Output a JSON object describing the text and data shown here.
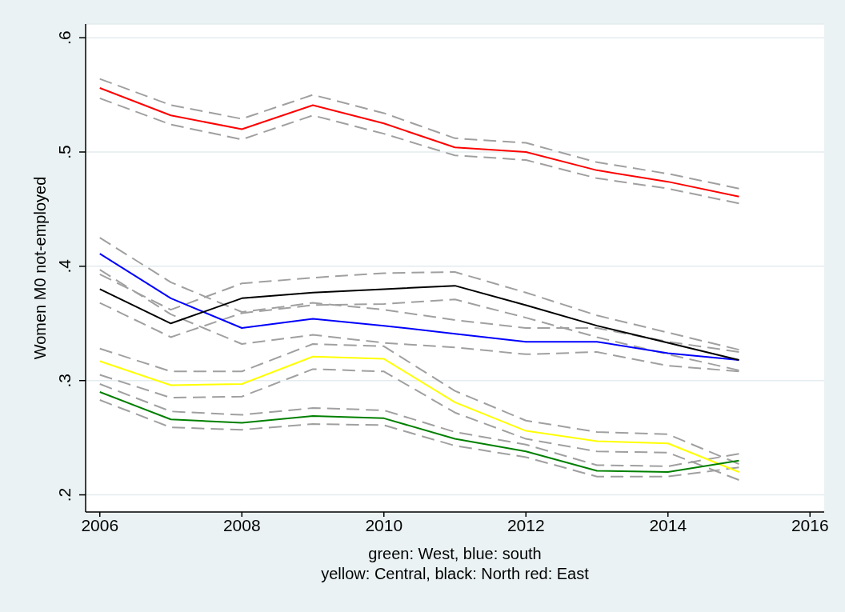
{
  "chart_data": {
    "type": "line",
    "x": [
      2006,
      2007,
      2008,
      2009,
      2010,
      2011,
      2012,
      2013,
      2014,
      2015
    ],
    "xlim": [
      2005.8,
      2016.2
    ],
    "xticks": [
      2006,
      2008,
      2010,
      2012,
      2014,
      2016
    ],
    "ylim": [
      0.185,
      0.612
    ],
    "yticks": [
      {
        "value": 0.2,
        "label": ".2"
      },
      {
        "value": 0.3,
        "label": ".3"
      },
      {
        "value": 0.4,
        "label": ".4"
      },
      {
        "value": 0.5,
        "label": ".5"
      },
      {
        "value": 0.6,
        "label": ".6"
      }
    ],
    "ylabel": "Women M0 not-employed",
    "xlabel": "green: West, blue: south\nyellow: Central, black: North red: East",
    "grid": "y",
    "series": [
      {
        "color": "#a0a0a0",
        "line_style": "dashed",
        "values": [
          0.564,
          0.541,
          0.529,
          0.55,
          0.534,
          0.512,
          0.508,
          0.491,
          0.481,
          0.468
        ]
      },
      {
        "color": "#a0a0a0",
        "line_style": "dashed",
        "values": [
          0.547,
          0.524,
          0.511,
          0.532,
          0.516,
          0.497,
          0.493,
          0.477,
          0.468,
          0.455
        ]
      },
      {
        "color": "#a0a0a0",
        "line_style": "dashed",
        "values": [
          0.425,
          0.386,
          0.36,
          0.368,
          0.362,
          0.353,
          0.346,
          0.346,
          0.334,
          0.325
        ]
      },
      {
        "color": "#a0a0a0",
        "line_style": "dashed",
        "values": [
          0.397,
          0.358,
          0.332,
          0.34,
          0.333,
          0.329,
          0.323,
          0.325,
          0.313,
          0.308
        ]
      },
      {
        "color": "#a0a0a0",
        "line_style": "dashed",
        "values": [
          0.393,
          0.362,
          0.385,
          0.39,
          0.394,
          0.395,
          0.377,
          0.357,
          0.342,
          0.327
        ]
      },
      {
        "color": "#a0a0a0",
        "line_style": "dashed",
        "values": [
          0.368,
          0.338,
          0.359,
          0.366,
          0.367,
          0.371,
          0.355,
          0.338,
          0.323,
          0.309
        ]
      },
      {
        "color": "#a0a0a0",
        "line_style": "dashed",
        "values": [
          0.328,
          0.308,
          0.308,
          0.332,
          0.33,
          0.291,
          0.265,
          0.255,
          0.253,
          0.227
        ]
      },
      {
        "color": "#a0a0a0",
        "line_style": "dashed",
        "values": [
          0.305,
          0.285,
          0.286,
          0.31,
          0.308,
          0.272,
          0.249,
          0.238,
          0.237,
          0.213
        ]
      },
      {
        "color": "#a0a0a0",
        "line_style": "dashed",
        "values": [
          0.297,
          0.273,
          0.27,
          0.276,
          0.274,
          0.255,
          0.244,
          0.226,
          0.225,
          0.236
        ]
      },
      {
        "color": "#a0a0a0",
        "line_style": "dashed",
        "values": [
          0.283,
          0.259,
          0.257,
          0.262,
          0.261,
          0.243,
          0.233,
          0.216,
          0.216,
          0.224
        ]
      },
      {
        "color": "#ff0000",
        "line_style": "solid",
        "values": [
          0.556,
          0.532,
          0.52,
          0.541,
          0.525,
          0.504,
          0.5,
          0.484,
          0.474,
          0.461
        ]
      },
      {
        "color": "#0000ff",
        "line_style": "solid",
        "values": [
          0.411,
          0.372,
          0.346,
          0.354,
          0.348,
          0.341,
          0.334,
          0.334,
          0.324,
          0.318
        ]
      },
      {
        "color": "#000000",
        "line_style": "solid",
        "values": [
          0.38,
          0.35,
          0.372,
          0.377,
          0.38,
          0.383,
          0.366,
          0.348,
          0.333,
          0.318
        ]
      },
      {
        "color": "#ffff00",
        "line_style": "solid",
        "values": [
          0.317,
          0.296,
          0.297,
          0.321,
          0.319,
          0.281,
          0.256,
          0.247,
          0.245,
          0.22
        ]
      },
      {
        "color": "#008000",
        "line_style": "solid",
        "values": [
          0.29,
          0.266,
          0.263,
          0.269,
          0.267,
          0.249,
          0.238,
          0.221,
          0.22,
          0.23
        ]
      }
    ]
  }
}
